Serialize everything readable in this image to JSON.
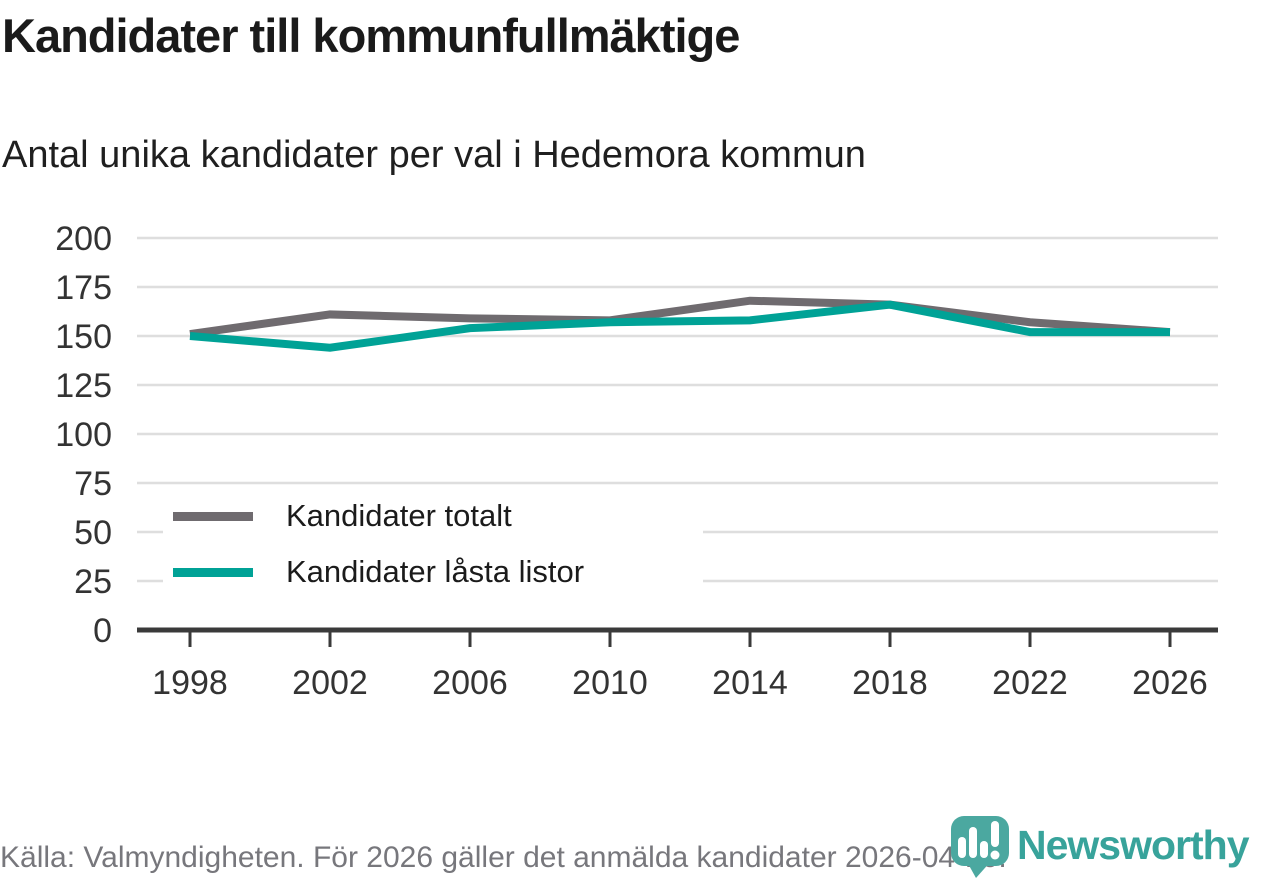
{
  "chart_data": {
    "type": "line",
    "title": "Kandidater till kommunfullmäktige",
    "subtitle": "Antal unika kandidater per val i Hedemora kommun",
    "x": [
      1998,
      2002,
      2006,
      2010,
      2014,
      2018,
      2022,
      2026
    ],
    "series": [
      {
        "name": "Kandidater totalt",
        "color": "#6f6b6f",
        "values": [
          151,
          161,
          159,
          158,
          168,
          166,
          157,
          152
        ]
      },
      {
        "name": "Kandidater låsta listor",
        "color": "#00a296",
        "values": [
          150,
          144,
          154,
          157,
          158,
          166,
          152,
          152
        ]
      }
    ],
    "ylim": [
      0,
      200
    ],
    "yticks": [
      0,
      25,
      50,
      75,
      100,
      125,
      150,
      175,
      200
    ],
    "grid": true,
    "legend_position": "inside-left"
  },
  "footer": {
    "source": "Källa: Valmyndigheten. För 2026 gäller det anmälda kandidater 2026-04-10.",
    "brand": "Newsworthy"
  },
  "colors": {
    "grid": "#dedede",
    "axis": "#3a3a3a",
    "tick_label": "#333333",
    "title": "#1a1a1a",
    "source_text": "#77777c",
    "brand_icon_teal": "#4ba8a0",
    "brand_text_teal": "#38a39b"
  },
  "icons": {
    "brand_icon": "bar-chart-speech-bubble-icon"
  }
}
